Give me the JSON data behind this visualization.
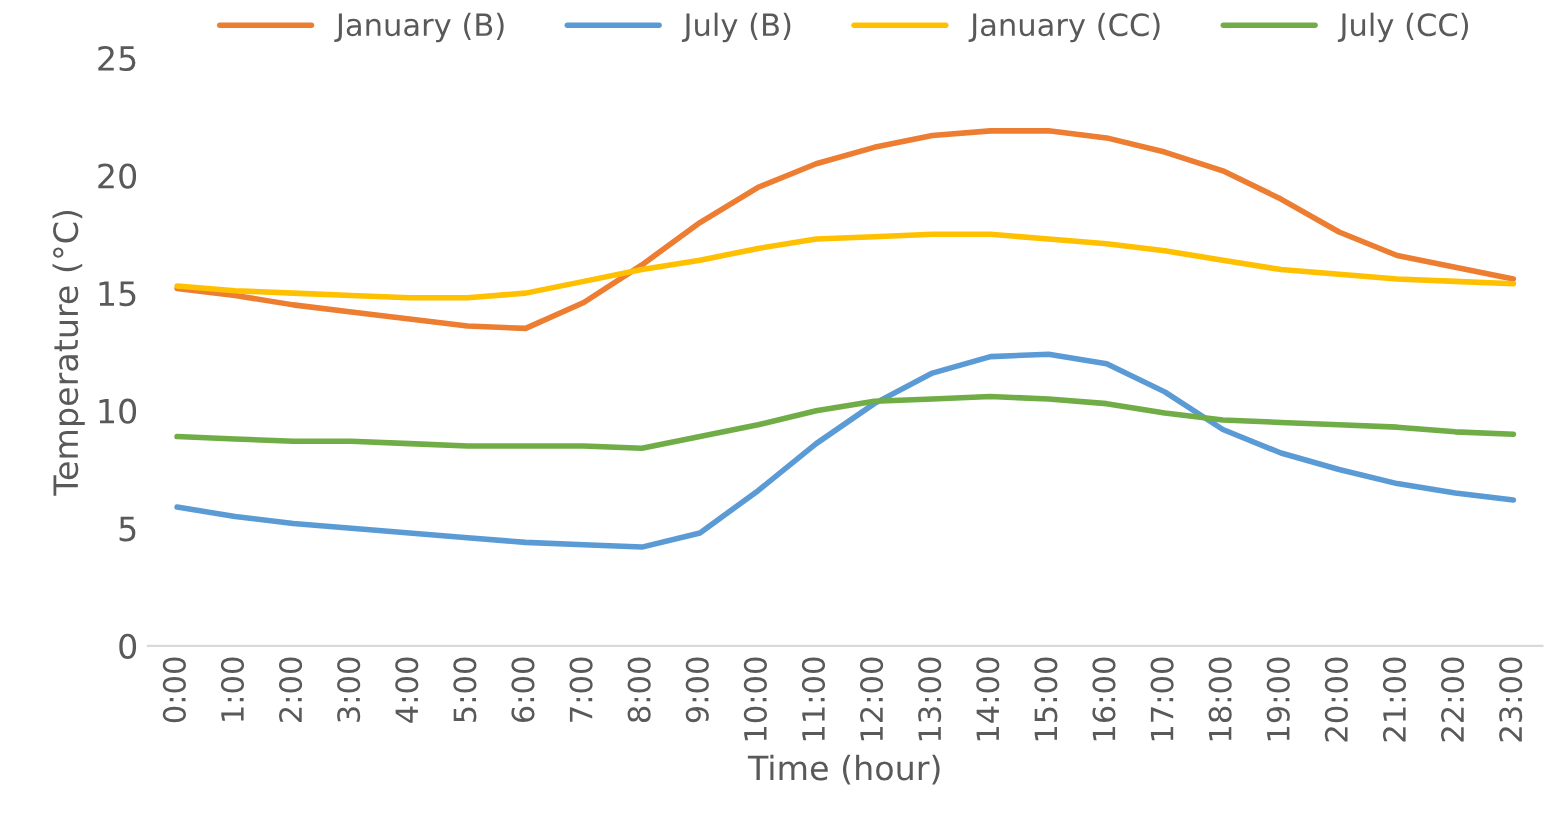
{
  "chart_data": {
    "type": "line",
    "xlabel": "Time (hour)",
    "ylabel": "Temperature (°C)",
    "categories": [
      "0:00",
      "1:00",
      "2:00",
      "3:00",
      "4:00",
      "5:00",
      "6:00",
      "7:00",
      "8:00",
      "9:00",
      "10:00",
      "11:00",
      "12:00",
      "13:00",
      "14:00",
      "15:00",
      "16:00",
      "17:00",
      "18:00",
      "19:00",
      "20:00",
      "21:00",
      "22:00",
      "23:00"
    ],
    "series": [
      {
        "name": "January (B)",
        "color": "#ed7d31",
        "values": [
          15.2,
          14.9,
          14.5,
          14.2,
          13.9,
          13.6,
          13.5,
          14.6,
          16.2,
          18.0,
          19.5,
          20.5,
          21.2,
          21.7,
          21.9,
          21.9,
          21.6,
          21.0,
          20.2,
          19.0,
          17.6,
          16.6,
          16.1,
          15.6
        ]
      },
      {
        "name": "July (B)",
        "color": "#5b9bd5",
        "values": [
          5.9,
          5.5,
          5.2,
          5.0,
          4.8,
          4.6,
          4.4,
          4.3,
          4.2,
          4.8,
          6.6,
          8.6,
          10.3,
          11.6,
          12.3,
          12.4,
          12.0,
          10.8,
          9.2,
          8.2,
          7.5,
          6.9,
          6.5,
          6.2
        ]
      },
      {
        "name": "January (CC)",
        "color": "#ffc000",
        "values": [
          15.3,
          15.1,
          15.0,
          14.9,
          14.8,
          14.8,
          15.0,
          15.5,
          16.0,
          16.4,
          16.9,
          17.3,
          17.4,
          17.5,
          17.5,
          17.3,
          17.1,
          16.8,
          16.4,
          16.0,
          15.8,
          15.6,
          15.5,
          15.4
        ]
      },
      {
        "name": "July (CC)",
        "color": "#70ad47",
        "values": [
          8.9,
          8.8,
          8.7,
          8.7,
          8.6,
          8.5,
          8.5,
          8.5,
          8.4,
          8.9,
          9.4,
          10.0,
          10.4,
          10.5,
          10.6,
          10.5,
          10.3,
          9.9,
          9.6,
          9.5,
          9.4,
          9.3,
          9.1,
          9.0
        ]
      }
    ],
    "ylim": [
      0,
      25
    ],
    "yticks": [
      0,
      5,
      10,
      15,
      20,
      25
    ],
    "legend": "top",
    "marker": "none",
    "line_style": "solid"
  }
}
